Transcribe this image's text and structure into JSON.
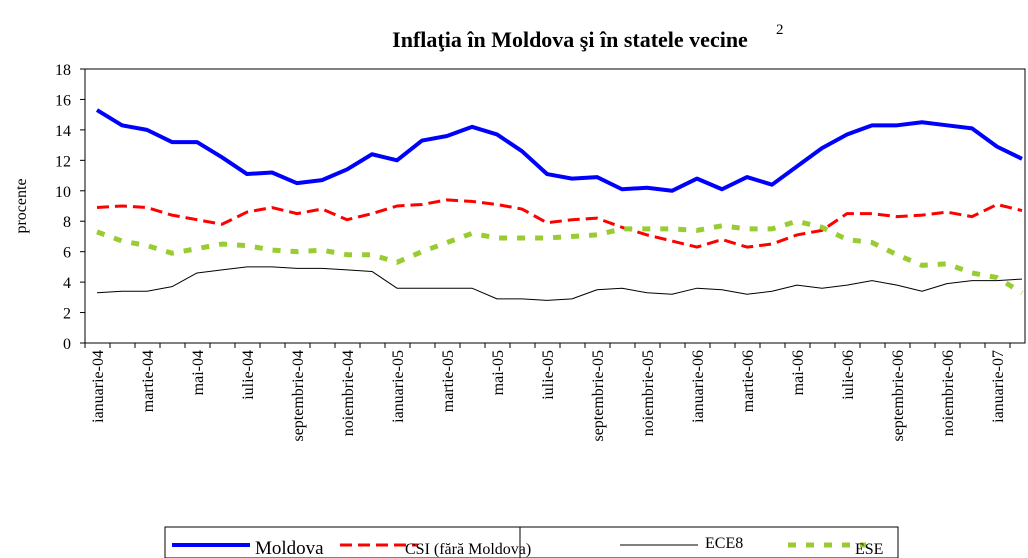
{
  "chart_data": {
    "type": "line",
    "title": "Inflaţia în Moldova şi în statele vecine",
    "title_note": "2",
    "ylabel": "procente",
    "categories": [
      "ianuarie-04",
      null,
      "martie-04",
      null,
      "mai-04",
      null,
      "iulie-04",
      null,
      "septembrie-04",
      null,
      "noiembrie-04",
      null,
      "ianuarie-05",
      null,
      "martie-05",
      null,
      "mai-05",
      null,
      "iulie-05",
      null,
      "septembrie-05",
      null,
      "noiembrie-05",
      null,
      "ianuarie-06",
      null,
      "martie-06",
      null,
      "mai-06",
      null,
      "iulie-06",
      null,
      "septembrie-06",
      null,
      "noiembrie-06",
      null,
      "ianuarie-07",
      null
    ],
    "ylim": [
      0,
      18
    ],
    "yticks": [
      0,
      2,
      4,
      6,
      8,
      10,
      12,
      14,
      16,
      18
    ],
    "series": [
      {
        "name": "Moldova",
        "color": "#0000ff",
        "style": "solid-thick",
        "values": [
          15.3,
          14.3,
          14.0,
          13.2,
          13.2,
          12.2,
          11.1,
          11.2,
          10.5,
          10.7,
          11.4,
          12.4,
          12.0,
          13.3,
          13.6,
          14.2,
          13.7,
          12.6,
          11.1,
          10.8,
          10.9,
          10.1,
          10.2,
          10.0,
          10.8,
          10.1,
          10.9,
          10.4,
          11.6,
          12.8,
          13.7,
          14.3,
          14.3,
          14.5,
          14.3,
          14.1,
          12.9,
          12.1
        ]
      },
      {
        "name": "CSI (fără Moldova)",
        "color": "#ff0000",
        "style": "dashed",
        "values": [
          8.9,
          9.0,
          8.9,
          8.4,
          8.1,
          7.8,
          8.6,
          8.9,
          8.5,
          8.8,
          8.1,
          8.5,
          9.0,
          9.1,
          9.4,
          9.3,
          9.1,
          8.8,
          7.9,
          8.1,
          8.2,
          7.6,
          7.1,
          6.7,
          6.3,
          6.8,
          6.3,
          6.5,
          7.1,
          7.4,
          8.5,
          8.5,
          8.3,
          8.4,
          8.6,
          8.3,
          9.1,
          8.7
        ]
      },
      {
        "name": "ECE8",
        "color": "#000000",
        "style": "thin",
        "values": [
          3.3,
          3.4,
          3.4,
          3.7,
          4.6,
          4.8,
          5.0,
          5.0,
          4.9,
          4.9,
          4.8,
          4.7,
          3.6,
          3.6,
          3.6,
          3.6,
          2.9,
          2.9,
          2.8,
          2.9,
          3.5,
          3.6,
          3.3,
          3.2,
          3.6,
          3.5,
          3.2,
          3.4,
          3.8,
          3.6,
          3.8,
          4.1,
          3.8,
          3.4,
          3.9,
          4.1,
          4.1,
          4.2
        ]
      },
      {
        "name": "ESE",
        "color": "#99cc33",
        "style": "dotted-thick",
        "values": [
          7.3,
          6.7,
          6.4,
          5.9,
          6.2,
          6.5,
          6.4,
          6.1,
          6.0,
          6.1,
          5.8,
          5.8,
          5.3,
          6.0,
          6.6,
          7.2,
          6.9,
          6.9,
          6.9,
          7.0,
          7.1,
          7.5,
          7.5,
          7.5,
          7.4,
          7.7,
          7.5,
          7.5,
          8.0,
          7.6,
          6.8,
          6.6,
          5.8,
          5.1,
          5.2,
          4.6,
          4.3,
          3.3
        ]
      }
    ]
  }
}
